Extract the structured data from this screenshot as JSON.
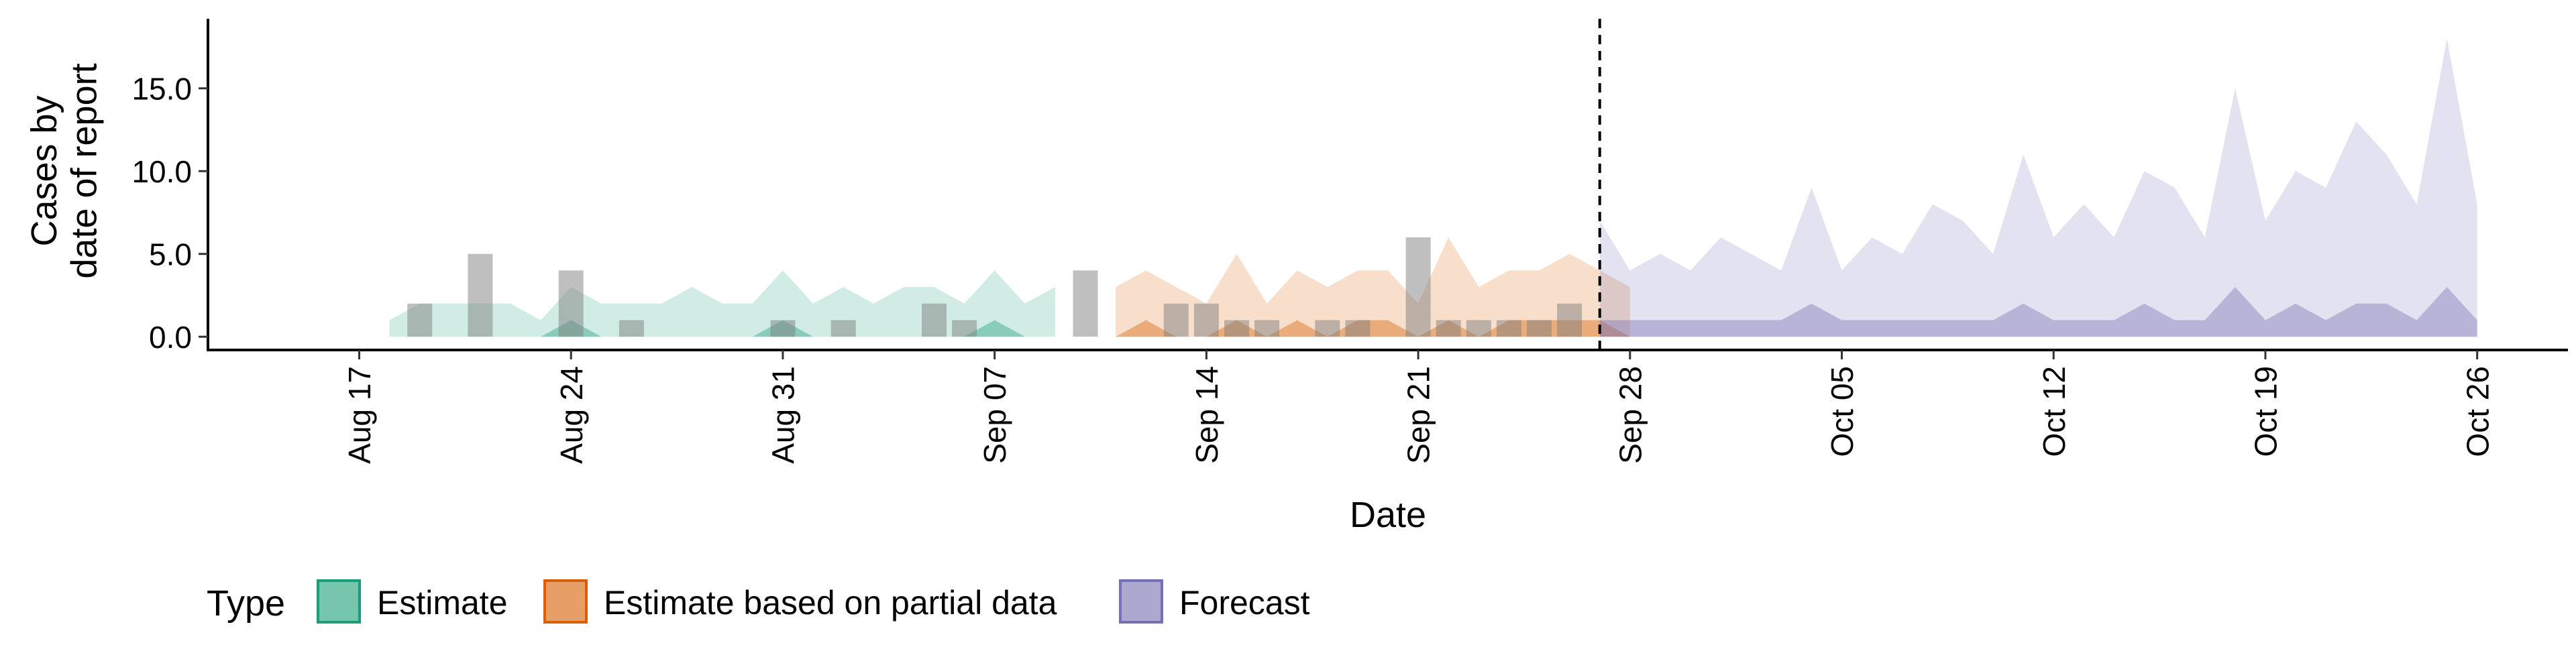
{
  "chart_data": {
    "type": "area",
    "title": "",
    "xlabel": "Date",
    "ylabel": "Cases by\ndate of report",
    "xlim": [
      "2020-08-12",
      "2020-10-29"
    ],
    "ylim": [
      -0.8,
      19.2
    ],
    "y_ticks": [
      0.0,
      5.0,
      10.0,
      15.0
    ],
    "y_tick_labels": [
      "0.0",
      "5.0",
      "10.0",
      "15.0"
    ],
    "x_ticks": [
      "2020-08-17",
      "2020-08-24",
      "2020-08-31",
      "2020-09-07",
      "2020-09-14",
      "2020-09-21",
      "2020-09-28",
      "2020-10-05",
      "2020-10-12",
      "2020-10-19",
      "2020-10-26"
    ],
    "x_tick_labels": [
      "Aug 17",
      "Aug 24",
      "Aug 31",
      "Sep 07",
      "Sep 14",
      "Sep 21",
      "Sep 28",
      "Oct 05",
      "Oct 12",
      "Oct 19",
      "Oct 26"
    ],
    "forecast_date": "2020-09-27",
    "grid": false,
    "legend": {
      "title": "Type",
      "position": "bottom-left",
      "entries": [
        "Estimate",
        "Estimate based on partial data",
        "Forecast"
      ]
    },
    "series": [
      {
        "name": "Estimate",
        "color": "#1B9E77",
        "start": "2020-08-18",
        "upper_outer": [
          1,
          2,
          2,
          2,
          2,
          1,
          3,
          2,
          2,
          2,
          3,
          2,
          2,
          4,
          2,
          3,
          2,
          3,
          3,
          2,
          4,
          2,
          3
        ],
        "lower_outer": [
          0,
          0,
          0,
          0,
          0,
          0,
          0,
          0,
          0,
          0,
          0,
          0,
          0,
          0,
          0,
          0,
          0,
          0,
          0,
          0,
          0,
          0,
          0
        ],
        "upper_inner": [
          0,
          0,
          0,
          0,
          0,
          0,
          1,
          0,
          0,
          0,
          0,
          0,
          0,
          1,
          0,
          0,
          0,
          0,
          0,
          0,
          1,
          0,
          0
        ],
        "lower_inner": [
          0,
          0,
          0,
          0,
          0,
          0,
          0,
          0,
          0,
          0,
          0,
          0,
          0,
          0,
          0,
          0,
          0,
          0,
          0,
          0,
          0,
          0,
          0
        ]
      },
      {
        "name": "Estimate based on partial data",
        "color": "#D95F02",
        "start": "2020-09-11",
        "upper_outer": [
          3,
          4,
          3,
          2,
          5,
          2,
          4,
          3,
          4,
          4,
          2,
          6,
          3,
          4,
          4,
          5,
          4,
          3
        ],
        "lower_outer": [
          0,
          0,
          0,
          0,
          0,
          0,
          0,
          0,
          0,
          0,
          0,
          0,
          0,
          0,
          0,
          0,
          0,
          0
        ],
        "upper_inner": [
          0,
          1,
          0,
          0,
          1,
          0,
          1,
          0,
          1,
          1,
          0,
          1,
          0,
          1,
          1,
          1,
          1,
          0
        ],
        "lower_inner": [
          0,
          0,
          0,
          0,
          0,
          0,
          0,
          0,
          0,
          0,
          0,
          0,
          0,
          0,
          0,
          0,
          0,
          0
        ]
      },
      {
        "name": "Forecast",
        "color": "#7570B3",
        "start": "2020-09-27",
        "upper_outer": [
          7,
          4,
          5,
          4,
          6,
          5,
          4,
          9,
          4,
          6,
          5,
          8,
          7,
          5,
          11,
          6,
          8,
          6,
          10,
          9,
          6,
          15,
          7,
          10,
          9,
          13,
          11,
          8,
          18,
          8
        ],
        "lower_outer": [
          0,
          0,
          0,
          0,
          0,
          0,
          0,
          0,
          0,
          0,
          0,
          0,
          0,
          0,
          0,
          0,
          0,
          0,
          0,
          0,
          0,
          0,
          0,
          0,
          0,
          0,
          0,
          0,
          0,
          0
        ],
        "upper_inner": [
          1,
          1,
          1,
          1,
          1,
          1,
          1,
          2,
          1,
          1,
          1,
          1,
          1,
          1,
          2,
          1,
          1,
          1,
          2,
          1,
          1,
          3,
          1,
          2,
          1,
          2,
          2,
          1,
          3,
          1
        ],
        "lower_inner": [
          0,
          0,
          0,
          0,
          0,
          0,
          0,
          0,
          0,
          0,
          0,
          0,
          0,
          0,
          0,
          0,
          0,
          0,
          0,
          0,
          0,
          0,
          0,
          0,
          0,
          0,
          0,
          0,
          0,
          0
        ]
      }
    ],
    "reported_cases": {
      "color": "#7F7F7F",
      "dates": [
        "2020-08-19",
        "2020-08-21",
        "2020-08-24",
        "2020-08-26",
        "2020-08-31",
        "2020-09-02",
        "2020-09-05",
        "2020-09-06",
        "2020-09-10",
        "2020-09-13",
        "2020-09-14",
        "2020-09-15",
        "2020-09-16",
        "2020-09-18",
        "2020-09-19",
        "2020-09-21",
        "2020-09-22",
        "2020-09-23",
        "2020-09-24",
        "2020-09-25",
        "2020-09-26"
      ],
      "values": [
        2,
        5,
        4,
        1,
        1,
        1,
        2,
        1,
        4,
        2,
        2,
        1,
        1,
        1,
        1,
        6,
        1,
        1,
        1,
        1,
        2
      ]
    }
  }
}
